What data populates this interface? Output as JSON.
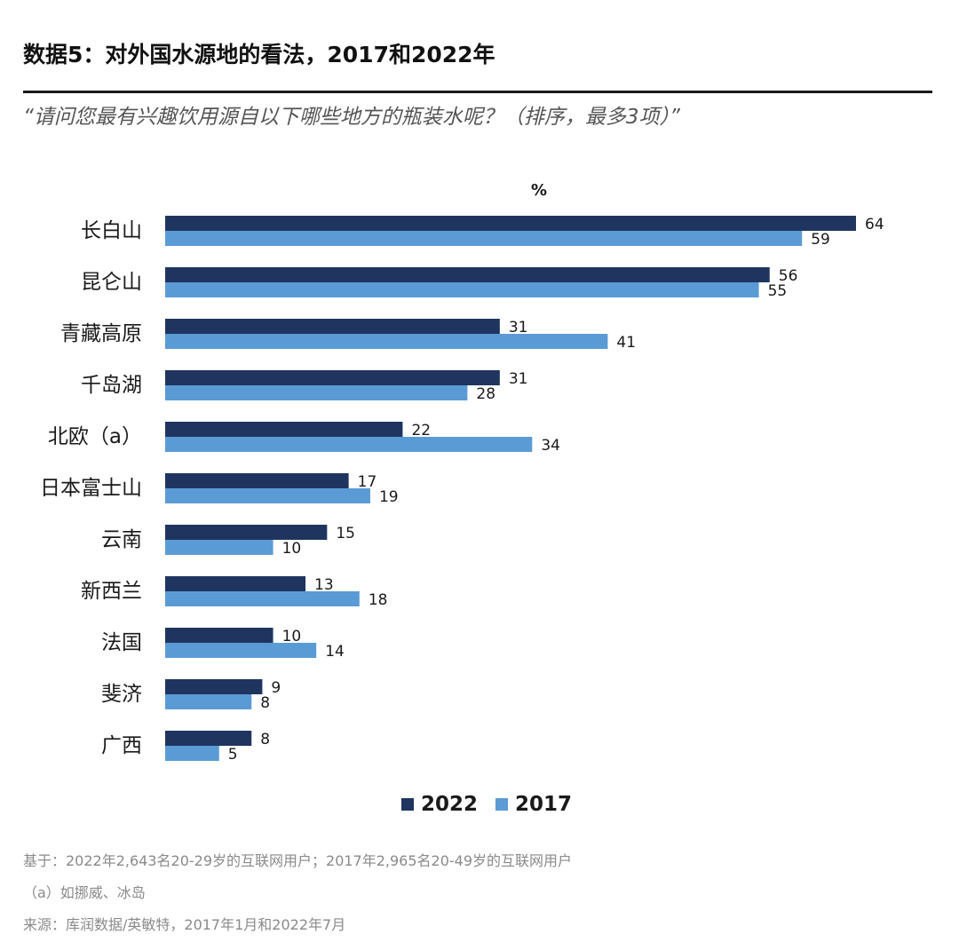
{
  "title": "数据5：对外国水源地的看法，2017和2022年",
  "subtitle": "“请问您最有兴趣饮用源自以下哪些地方的瓶装水呢？（排序，最多3项）”",
  "colors": {
    "s2022": "#1f3560",
    "s2017": "#5b9bd5"
  },
  "chart_data": {
    "type": "bar",
    "orientation": "horizontal",
    "unit_label": "%",
    "categories": [
      "长白山",
      "昆仑山",
      "青藏高原",
      "千岛湖",
      "北欧（a）",
      "日本富士山",
      "云南",
      "新西兰",
      "法国",
      "斐济",
      "广西"
    ],
    "series": [
      {
        "name": "2022",
        "values": [
          64,
          56,
          31,
          31,
          22,
          17,
          15,
          13,
          10,
          9,
          8
        ]
      },
      {
        "name": "2017",
        "values": [
          59,
          55,
          41,
          28,
          34,
          19,
          10,
          18,
          14,
          8,
          5
        ]
      }
    ],
    "xlim": [
      0,
      70
    ],
    "legend_position": "bottom-center",
    "grid": false
  },
  "notes": [
    "基于：2022年2,643名20-29岁的互联网用户；2017年2,965名20-49岁的互联网用户",
    "（a）如挪威、冰岛",
    "来源：库润数据/英敏特，2017年1月和2022年7月"
  ]
}
